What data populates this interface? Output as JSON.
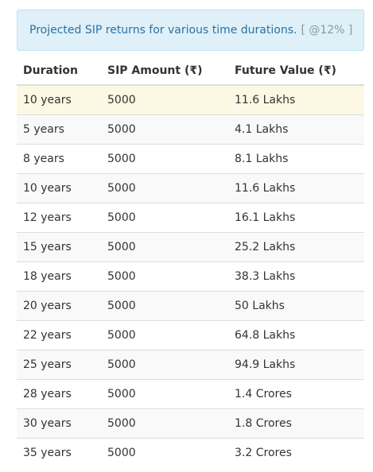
{
  "notice": {
    "text": "Projected SIP returns for various time durations.",
    "rate": "[ @12% ]"
  },
  "table": {
    "headers": [
      "Duration",
      "SIP Amount (₹)",
      "Future Value (₹)"
    ],
    "rows": [
      [
        "10 years",
        "5000",
        "11.6 Lakhs"
      ],
      [
        "5 years",
        "5000",
        "4.1 Lakhs"
      ],
      [
        "8 years",
        "5000",
        "8.1 Lakhs"
      ],
      [
        "10 years",
        "5000",
        "11.6 Lakhs"
      ],
      [
        "12 years",
        "5000",
        "16.1 Lakhs"
      ],
      [
        "15 years",
        "5000",
        "25.2 Lakhs"
      ],
      [
        "18 years",
        "5000",
        "38.3 Lakhs"
      ],
      [
        "20 years",
        "5000",
        "50 Lakhs"
      ],
      [
        "22 years",
        "5000",
        "64.8 Lakhs"
      ],
      [
        "25 years",
        "5000",
        "94.9 Lakhs"
      ],
      [
        "28 years",
        "5000",
        "1.4 Crores"
      ],
      [
        "30 years",
        "5000",
        "1.8 Crores"
      ],
      [
        "35 years",
        "5000",
        "3.2 Crores"
      ]
    ],
    "highlighted_row": 0
  },
  "colors": {
    "notice_bg": "#dff0f8",
    "notice_text": "#2a72a3",
    "highlight_row": "#fcf8e3"
  }
}
